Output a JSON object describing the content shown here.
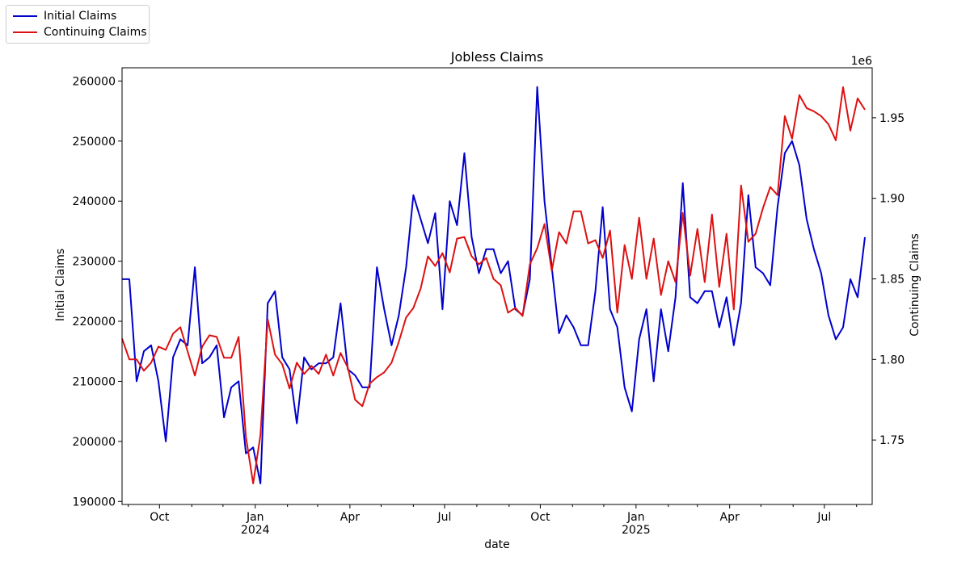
{
  "chart_data": {
    "type": "line",
    "title": "Jobless Claims",
    "xlabel": "date",
    "ylabel_left": "Initial Claims",
    "ylabel_right": "Continuing Claims",
    "right_axis_multiplier": "1e6",
    "grid": false,
    "legend_position": "top-left",
    "x_range": [
      "2023-08-26",
      "2025-08-16"
    ],
    "x_ticks": [
      {
        "date": "2023-10-01",
        "label": "Oct",
        "sublabel": ""
      },
      {
        "date": "2024-01-01",
        "label": "Jan",
        "sublabel": "2024"
      },
      {
        "date": "2024-04-01",
        "label": "Apr",
        "sublabel": ""
      },
      {
        "date": "2024-07-01",
        "label": "Jul",
        "sublabel": ""
      },
      {
        "date": "2024-10-01",
        "label": "Oct",
        "sublabel": ""
      },
      {
        "date": "2025-01-01",
        "label": "Jan",
        "sublabel": "2025"
      },
      {
        "date": "2025-04-01",
        "label": "Apr",
        "sublabel": ""
      },
      {
        "date": "2025-07-01",
        "label": "Jul",
        "sublabel": ""
      }
    ],
    "minor_ticks": [
      "2023-09-01",
      "2023-11-01",
      "2023-12-01",
      "2024-02-01",
      "2024-03-01",
      "2024-05-01",
      "2024-06-01",
      "2024-08-01",
      "2024-09-01",
      "2024-11-01",
      "2024-12-01",
      "2025-02-01",
      "2025-03-01",
      "2025-05-01",
      "2025-06-01",
      "2025-08-01"
    ],
    "y_left": {
      "min": 189500,
      "max": 262200,
      "ticks": [
        190000,
        200000,
        210000,
        220000,
        230000,
        240000,
        250000,
        260000
      ]
    },
    "y_right": {
      "min": 1.71,
      "max": 1.981,
      "ticks": [
        1.75,
        1.8,
        1.85,
        1.9,
        1.95
      ]
    },
    "x_start": "2023-08-26",
    "series": [
      {
        "name": "Initial Claims",
        "axis": "left",
        "color": "#0000cc",
        "values": [
          227000,
          227000,
          210000,
          215000,
          216000,
          210000,
          200000,
          214000,
          217000,
          216000,
          229000,
          213000,
          214000,
          216000,
          204000,
          209000,
          210000,
          198000,
          199000,
          193000,
          223000,
          225000,
          214000,
          212000,
          203000,
          214000,
          212000,
          213000,
          213000,
          214000,
          223000,
          212000,
          211000,
          209000,
          209000,
          229000,
          222000,
          216000,
          221000,
          229000,
          241000,
          237000,
          233000,
          238000,
          222000,
          240000,
          236000,
          248000,
          234000,
          228000,
          232000,
          232000,
          228000,
          230000,
          222000,
          221000,
          227000,
          259000,
          240000,
          229000,
          218000,
          221000,
          219000,
          216000,
          216000,
          225000,
          239000,
          222000,
          219000,
          209000,
          205000,
          217000,
          222000,
          210000,
          222000,
          215000,
          224000,
          243000,
          224000,
          223000,
          225000,
          225000,
          219000,
          224000,
          216000,
          223000,
          241000,
          229000,
          228000,
          226000,
          239000,
          248000,
          250000,
          246000,
          237000,
          232000,
          228000,
          221000,
          217000,
          219000,
          227000,
          224000,
          234000
        ]
      },
      {
        "name": "Continuing Claims",
        "axis": "right",
        "color": "#dd1111",
        "values": [
          1.813,
          1.8,
          1.8,
          1.793,
          1.798,
          1.808,
          1.806,
          1.816,
          1.82,
          1.805,
          1.79,
          1.808,
          1.815,
          1.814,
          1.801,
          1.801,
          1.814,
          1.752,
          1.723,
          1.753,
          1.825,
          1.803,
          1.797,
          1.782,
          1.798,
          1.791,
          1.796,
          1.791,
          1.803,
          1.79,
          1.804,
          1.795,
          1.775,
          1.771,
          1.785,
          1.789,
          1.792,
          1.798,
          1.811,
          1.826,
          1.832,
          1.844,
          1.864,
          1.858,
          1.866,
          1.854,
          1.875,
          1.876,
          1.864,
          1.859,
          1.863,
          1.85,
          1.846,
          1.829,
          1.832,
          1.827,
          1.859,
          1.869,
          1.884,
          1.855,
          1.879,
          1.872,
          1.892,
          1.892,
          1.872,
          1.874,
          1.863,
          1.88,
          1.829,
          1.871,
          1.85,
          1.888,
          1.85,
          1.875,
          1.84,
          1.861,
          1.848,
          1.891,
          1.852,
          1.881,
          1.848,
          1.89,
          1.845,
          1.878,
          1.831,
          1.908,
          1.873,
          1.878,
          1.894,
          1.907,
          1.902,
          1.951,
          1.937,
          1.964,
          1.956,
          1.954,
          1.951,
          1.946,
          1.936,
          1.969,
          1.942,
          1.962,
          1.955
        ]
      }
    ]
  }
}
